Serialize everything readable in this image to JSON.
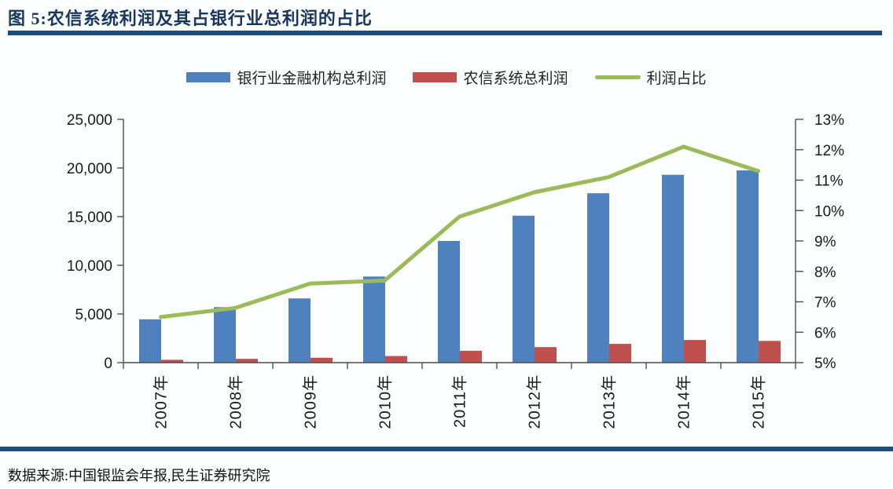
{
  "page": {
    "title": "图 5:农信系统利润及其占银行业总利润的占比",
    "source": "数据来源:中国银监会年报,民生证券研究院"
  },
  "colors": {
    "title_navy": "#17365D",
    "rule_blue": "#1B4C7E",
    "bank_bar_blue": "#4E81BD",
    "rural_bar_red": "#C0504D",
    "ratio_line_green": "#9BBB59",
    "axis_line": "#4D4D4D",
    "tick_text": "#1A1A1A"
  },
  "chart_data": {
    "type": "bar",
    "title": "农信系统利润及其占银行业总利润的占比",
    "categories": [
      "2007年",
      "2008年",
      "2009年",
      "2010年",
      "2011年",
      "2012年",
      "2013年",
      "2014年",
      "2015年"
    ],
    "series": [
      {
        "name": "银行业金融机构总利润",
        "type": "bar",
        "axis": "left",
        "color": "#4E81BD",
        "values": [
          4450,
          5700,
          6600,
          8850,
          12500,
          15100,
          17400,
          19300,
          19750
        ]
      },
      {
        "name": "农信系统总利润",
        "type": "bar",
        "axis": "left",
        "color": "#C0504D",
        "values": [
          290,
          390,
          500,
          680,
          1220,
          1600,
          1930,
          2330,
          2230
        ]
      },
      {
        "name": "利润占比",
        "type": "line",
        "axis": "right",
        "color": "#9BBB59",
        "values": [
          6.5,
          6.8,
          7.6,
          7.7,
          9.8,
          10.6,
          11.1,
          12.1,
          11.3
        ]
      }
    ],
    "left_axis": {
      "min": 0,
      "max": 25000,
      "step": 5000,
      "tick_labels": [
        "0",
        "5,000",
        "10,000",
        "15,000",
        "20,000",
        "25,000"
      ]
    },
    "right_axis": {
      "min": 5,
      "max": 13,
      "step": 1,
      "unit": "%",
      "tick_labels": [
        "5%",
        "6%",
        "7%",
        "8%",
        "9%",
        "10%",
        "11%",
        "12%",
        "13%"
      ]
    },
    "grid": false,
    "legend_position": "top-center"
  }
}
